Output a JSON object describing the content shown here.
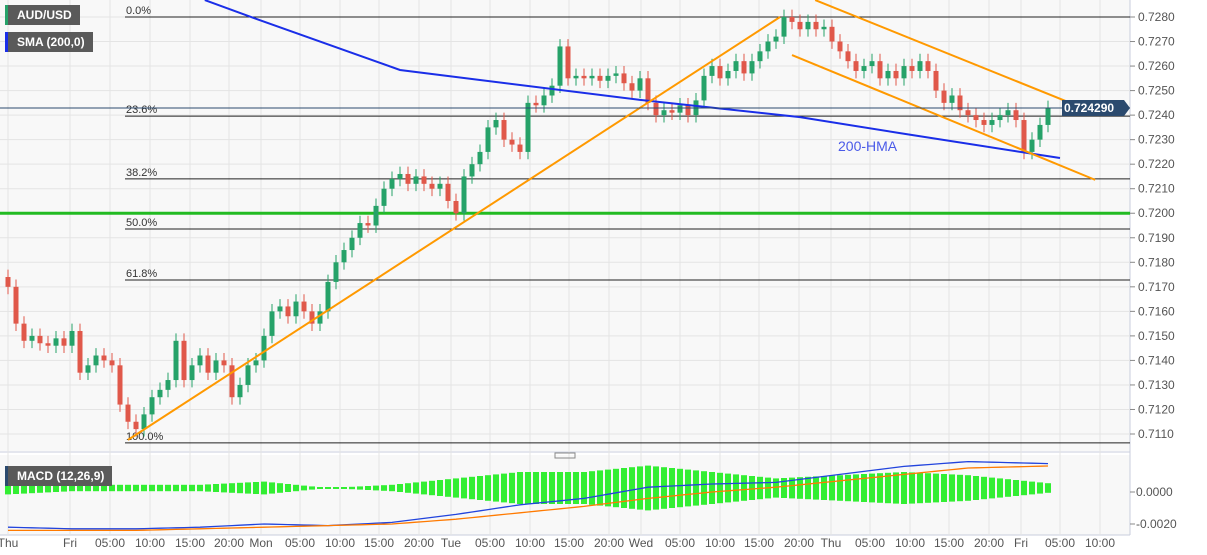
{
  "header": {
    "symbol": "AUD/USD",
    "indicator": "SMA (200,0)",
    "macd_label": "MACD (12,26,9)"
  },
  "colors": {
    "up": "#26a269",
    "down": "#e0584a",
    "sma": "#1a2ee8",
    "trend": "#ff9900",
    "support": "#22bb22",
    "price_tag": "#2b4a6e",
    "fib": "#222222"
  },
  "chart_data": {
    "type": "candlestick",
    "price_axis": {
      "ticks": [
        "0.7280",
        "0.7270",
        "0.7260",
        "0.7250",
        "0.7240",
        "0.7230",
        "0.7220",
        "0.7210",
        "0.7200",
        "0.7190",
        "0.7180",
        "0.7170",
        "0.7160",
        "0.7150",
        "0.7140",
        "0.7130",
        "0.7120",
        "0.7110"
      ],
      "range": [
        0.71025,
        0.7287
      ]
    },
    "macd_axis": {
      "ticks": [
        "0.0000",
        "-0.0020"
      ]
    },
    "time_axis": [
      "Thu",
      "Fri",
      "05:00",
      "10:00",
      "15:00",
      "20:00",
      "Mon",
      "05:00",
      "10:00",
      "15:00",
      "20:00",
      "Tue",
      "05:00",
      "10:00",
      "15:00",
      "20:00",
      "Wed",
      "05:00",
      "10:00",
      "15:00",
      "20:00",
      "Thu",
      "05:00",
      "10:00",
      "15:00",
      "20:00",
      "Fri",
      "05:00",
      "10:00"
    ],
    "interval_hours": 1,
    "closes": [
      0.717,
      0.7155,
      0.7148,
      0.715,
      0.7147,
      0.7146,
      0.7149,
      0.7146,
      0.7152,
      0.7135,
      0.7138,
      0.7142,
      0.714,
      0.7138,
      0.7122,
      0.7115,
      0.7112,
      0.7118,
      0.7125,
      0.7128,
      0.7132,
      0.7148,
      0.7132,
      0.7138,
      0.7142,
      0.7135,
      0.714,
      0.7138,
      0.7125,
      0.713,
      0.7138,
      0.714,
      0.715,
      0.716,
      0.7162,
      0.7158,
      0.7164,
      0.716,
      0.7155,
      0.716,
      0.7172,
      0.718,
      0.7185,
      0.719,
      0.7196,
      0.7195,
      0.7203,
      0.721,
      0.7214,
      0.7216,
      0.7212,
      0.7215,
      0.7212,
      0.721,
      0.7212,
      0.7205,
      0.72,
      0.7215,
      0.722,
      0.7225,
      0.7235,
      0.7238,
      0.723,
      0.7228,
      0.7225,
      0.7245,
      0.7244,
      0.7248,
      0.7252,
      0.7268,
      0.7255,
      0.7256,
      0.7255,
      0.7256,
      0.7254,
      0.7256,
      0.7257,
      0.7253,
      0.725,
      0.7255,
      0.7245,
      0.724,
      0.7242,
      0.7241,
      0.7244,
      0.724,
      0.7246,
      0.7256,
      0.726,
      0.7255,
      0.7258,
      0.7262,
      0.7257,
      0.7262,
      0.7266,
      0.727,
      0.7272,
      0.728,
      0.7278,
      0.7275,
      0.7278,
      0.7275,
      0.7276,
      0.727,
      0.7266,
      0.7262,
      0.7258,
      0.726,
      0.7262,
      0.7255,
      0.7258,
      0.7255,
      0.726,
      0.7258,
      0.7262,
      0.7258,
      0.725,
      0.7245,
      0.7248,
      0.7242,
      0.724,
      0.7238,
      0.7236,
      0.7238,
      0.724,
      0.7242,
      0.7238,
      0.7225,
      0.723,
      0.7236,
      0.72429
    ],
    "last_price": "0.724290",
    "sma200": [
      [
        24.6,
        0.72869
      ],
      [
        31.4,
        0.72788
      ],
      [
        49,
        0.72584
      ],
      [
        79,
        0.72462
      ],
      [
        99,
        0.72392
      ],
      [
        111.4,
        0.72327
      ],
      [
        131.5,
        0.72225
      ]
    ],
    "sma_annotation": "200-HMA",
    "trendlines": [
      {
        "from": [
          15,
          0.71076
        ],
        "to": [
          96.5,
          0.728
        ]
      },
      {
        "from": [
          100.9,
          0.72869
        ],
        "to": [
          135.9,
          0.72409
        ]
      },
      {
        "from": [
          98,
          0.72645
        ],
        "to": [
          135.9,
          0.72136
        ]
      }
    ],
    "support_level": 0.72,
    "fibonacci": [
      {
        "label": "0.0%",
        "price": 0.728
      },
      {
        "label": "23.6%",
        "price": 0.72396
      },
      {
        "label": "38.2%",
        "price": 0.7214
      },
      {
        "label": "50.0%",
        "price": 0.71936
      },
      {
        "label": "61.8%",
        "price": 0.71728
      },
      {
        "label": "100.0%",
        "price": 0.71064
      }
    ],
    "macd": {
      "samples_every_candles": 8,
      "macd": [
        -0.0022,
        -0.0023,
        -0.0023,
        -0.0022,
        -0.002,
        -0.0021,
        -0.0019,
        -0.0014,
        -0.0008,
        -0.0004,
        0.0003,
        0.0005,
        0.0006,
        0.0011,
        0.0016,
        0.0019,
        0.0018,
        0.0017,
        0.0016,
        0.0016,
        0.0018,
        0.0019,
        0.0018,
        0.0017,
        0.0012,
        0.0008,
        0.0006,
        0.0005,
        0.0006,
        0.0008,
        0.0012,
        0.0014,
        0.0014,
        0.0013,
        0.0012,
        0.0008,
        0.0004,
        0.0001,
        -0.0001,
        -0.0002,
        -0.0003,
        -0.0005,
        -0.0008,
        -0.0009,
        -0.0007,
        -0.0005,
        -0.0006,
        -0.0005,
        -0.0004,
        -0.0006,
        -0.0008,
        -0.0009,
        -0.0008,
        -0.0005
      ],
      "signal": [
        -0.0024,
        -0.0024,
        -0.0024,
        -0.0023,
        -0.0022,
        -0.0021,
        -0.002,
        -0.0017,
        -0.0013,
        -0.0009,
        -0.0004,
        0.0,
        0.0003,
        0.0007,
        0.0011,
        0.0015,
        0.0016,
        0.0017,
        0.0017,
        0.0017,
        0.0018,
        0.0018,
        0.0018,
        0.0017,
        0.0014,
        0.0011,
        0.0009,
        0.0007,
        0.0007,
        0.0008,
        0.001,
        0.0012,
        0.0013,
        0.0013,
        0.0013,
        0.001,
        0.0007,
        0.0004,
        0.0002,
        0.0,
        -0.0001,
        -0.0003,
        -0.0005,
        -0.0007,
        -0.0007,
        -0.0006,
        -0.0006,
        -0.0005,
        -0.0004,
        -0.0005,
        -0.0006,
        -0.0007,
        -0.0007,
        -0.0006
      ]
    }
  }
}
